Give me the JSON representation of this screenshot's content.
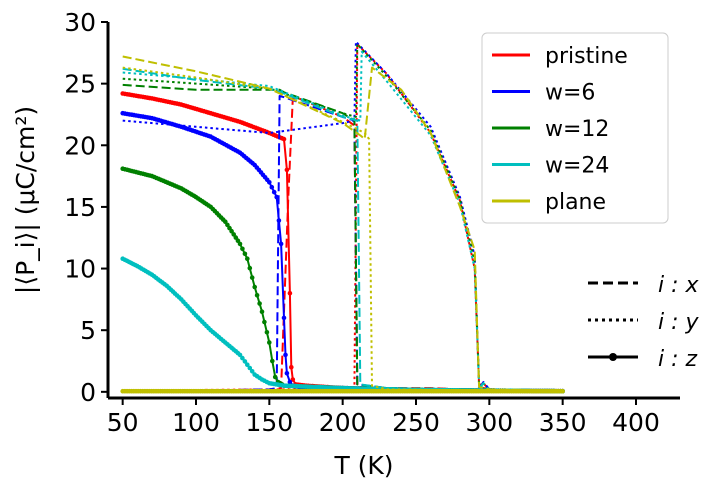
{
  "chart_data": {
    "type": "line",
    "title": "",
    "xlabel": "T (K)",
    "ylabel": "|⟨P_i⟩| (μC/cm²)",
    "xlim": [
      40,
      430
    ],
    "ylim": [
      -0.5,
      30
    ],
    "xticks": [
      50,
      100,
      150,
      200,
      250,
      300,
      350,
      400
    ],
    "yticks": [
      0,
      5,
      10,
      15,
      20,
      25,
      30
    ],
    "legend_position": "top-right",
    "component_legend_position": "lower-right",
    "components": [
      {
        "name": "x",
        "label": "i : x",
        "style": "dashed"
      },
      {
        "name": "y",
        "label": "i : y",
        "style": "dotted"
      },
      {
        "name": "z",
        "label": "i : z",
        "style": "solid-marker"
      }
    ],
    "series": [
      {
        "name": "pristine",
        "color": "#ff0000",
        "x": {
          "T": [
            50,
            100,
            150,
            158,
            163,
            166,
            170,
            200,
            208,
            210,
            230,
            260,
            280,
            290,
            293,
            295,
            300,
            350
          ],
          "P": [
            0.1,
            0.1,
            0.2,
            0.3,
            16,
            23.8,
            23.8,
            22.3,
            21.6,
            0.4,
            0.3,
            0.3,
            0.2,
            0.2,
            0.2,
            0.8,
            0.2,
            0.1
          ]
        },
        "y": {
          "T": [
            50,
            150,
            200,
            208,
            210,
            230,
            260,
            280,
            290,
            293,
            296,
            300,
            350
          ],
          "P": [
            0.1,
            0.2,
            0.2,
            0.2,
            28.2,
            25.8,
            21.0,
            15.5,
            10.0,
            0.5,
            0.3,
            0.2,
            0.1
          ]
        },
        "z": {
          "T": [
            50,
            70,
            90,
            110,
            130,
            150,
            160,
            162,
            164,
            165,
            166,
            168,
            175,
            200,
            250,
            300,
            350
          ],
          "P": [
            24.2,
            23.8,
            23.3,
            22.6,
            21.9,
            21.0,
            20.5,
            18.0,
            8.0,
            2.0,
            1.0,
            0.6,
            0.5,
            0.3,
            0.15,
            0.1,
            0.05
          ]
        }
      },
      {
        "name": "w=6",
        "color": "#0000ff",
        "x": {
          "T": [
            50,
            100,
            150,
            155,
            157,
            160,
            200,
            208,
            210,
            230,
            280,
            290,
            293,
            296,
            300,
            350
          ],
          "P": [
            0.1,
            0.1,
            0.2,
            0.3,
            24.0,
            23.9,
            22.3,
            22.0,
            0.6,
            0.3,
            0.2,
            0.2,
            0.3,
            0.8,
            0.2,
            0.1
          ]
        },
        "y": {
          "T": [
            50,
            100,
            150,
            200,
            208,
            209,
            230,
            260,
            280,
            290,
            293,
            296,
            300,
            350
          ],
          "P": [
            22.0,
            21.5,
            21.0,
            21.8,
            22.0,
            28.4,
            25.8,
            21.5,
            15.8,
            11.0,
            0.5,
            0.3,
            0.2,
            0.1
          ]
        },
        "z": {
          "T": [
            50,
            70,
            90,
            110,
            130,
            140,
            150,
            155,
            158,
            160,
            161,
            162,
            164,
            166,
            170,
            200,
            250,
            300,
            350
          ],
          "P": [
            22.6,
            22.2,
            21.5,
            20.7,
            19.4,
            18.4,
            17.0,
            15.8,
            12.0,
            6.0,
            3.0,
            1.5,
            0.8,
            0.5,
            0.4,
            0.3,
            0.15,
            0.1,
            0.05
          ]
        }
      },
      {
        "name": "w=12",
        "color": "#008000",
        "x": {
          "T": [
            50,
            100,
            150,
            157,
            160,
            200,
            208,
            210,
            230,
            280,
            290,
            293,
            296,
            300,
            350
          ],
          "P": [
            24.9,
            24.5,
            24.5,
            24.5,
            24.3,
            22.6,
            22.0,
            0.6,
            0.3,
            0.2,
            0.2,
            0.3,
            0.7,
            0.2,
            0.1
          ]
        },
        "y": {
          "T": [
            50,
            100,
            150,
            200,
            209,
            210,
            230,
            260,
            280,
            290,
            293,
            296,
            300,
            350
          ],
          "P": [
            25.4,
            25.0,
            24.6,
            22.6,
            22.3,
            28.2,
            25.6,
            21.2,
            15.6,
            10.5,
            0.5,
            0.3,
            0.2,
            0.1
          ]
        },
        "z": {
          "T": [
            50,
            70,
            90,
            100,
            110,
            120,
            130,
            135,
            140,
            145,
            150,
            152,
            154,
            156,
            160,
            200,
            250,
            300,
            350
          ],
          "P": [
            18.1,
            17.5,
            16.5,
            15.8,
            15.0,
            13.8,
            12.0,
            10.8,
            8.5,
            6.5,
            4.0,
            2.5,
            1.2,
            0.8,
            0.5,
            0.3,
            0.15,
            0.1,
            0.05
          ]
        }
      },
      {
        "name": "w=24",
        "color": "#00bfbf",
        "x": {
          "T": [
            50,
            100,
            150,
            160,
            200,
            210,
            212,
            230,
            280,
            290,
            293,
            296,
            300,
            350
          ],
          "P": [
            26.2,
            25.3,
            24.6,
            24.2,
            22.3,
            22.0,
            0.6,
            0.3,
            0.2,
            0.2,
            0.3,
            0.7,
            0.2,
            0.1
          ]
        },
        "y": {
          "T": [
            50,
            100,
            150,
            200,
            212,
            213,
            230,
            260,
            280,
            290,
            293,
            296,
            300,
            350
          ],
          "P": [
            25.9,
            25.4,
            24.8,
            22.4,
            22.0,
            27.6,
            25.2,
            20.8,
            15.2,
            10.0,
            0.5,
            0.3,
            0.2,
            0.1
          ]
        },
        "z": {
          "T": [
            50,
            60,
            70,
            80,
            90,
            100,
            110,
            120,
            130,
            135,
            140,
            145,
            150,
            160,
            200,
            250,
            300,
            350
          ],
          "P": [
            10.8,
            10.2,
            9.5,
            8.6,
            7.5,
            6.2,
            5.0,
            4.0,
            3.0,
            2.2,
            1.4,
            1.0,
            0.7,
            0.5,
            0.3,
            0.15,
            0.1,
            0.05
          ]
        }
      },
      {
        "name": "plane",
        "color": "#bfbf00",
        "x": {
          "T": [
            50,
            100,
            150,
            200,
            212,
            215,
            220,
            240,
            260,
            280,
            290,
            293,
            296,
            300,
            350
          ],
          "P": [
            27.2,
            26.0,
            24.6,
            21.8,
            20.8,
            20.5,
            26.3,
            24.5,
            21.0,
            15.0,
            11.5,
            0.4,
            0.3,
            0.2,
            0.1
          ]
        },
        "y": {
          "T": [
            50,
            100,
            150,
            200,
            215,
            218,
            220,
            230,
            300,
            350
          ],
          "P": [
            26.3,
            25.5,
            24.6,
            21.9,
            21.0,
            20.5,
            0.5,
            0.2,
            0.1,
            0.05
          ]
        },
        "z": {
          "T": [
            50,
            100,
            150,
            200,
            250,
            300,
            350
          ],
          "P": [
            0.05,
            0.05,
            0.05,
            0.05,
            0.05,
            0.05,
            0.05
          ]
        }
      }
    ]
  }
}
